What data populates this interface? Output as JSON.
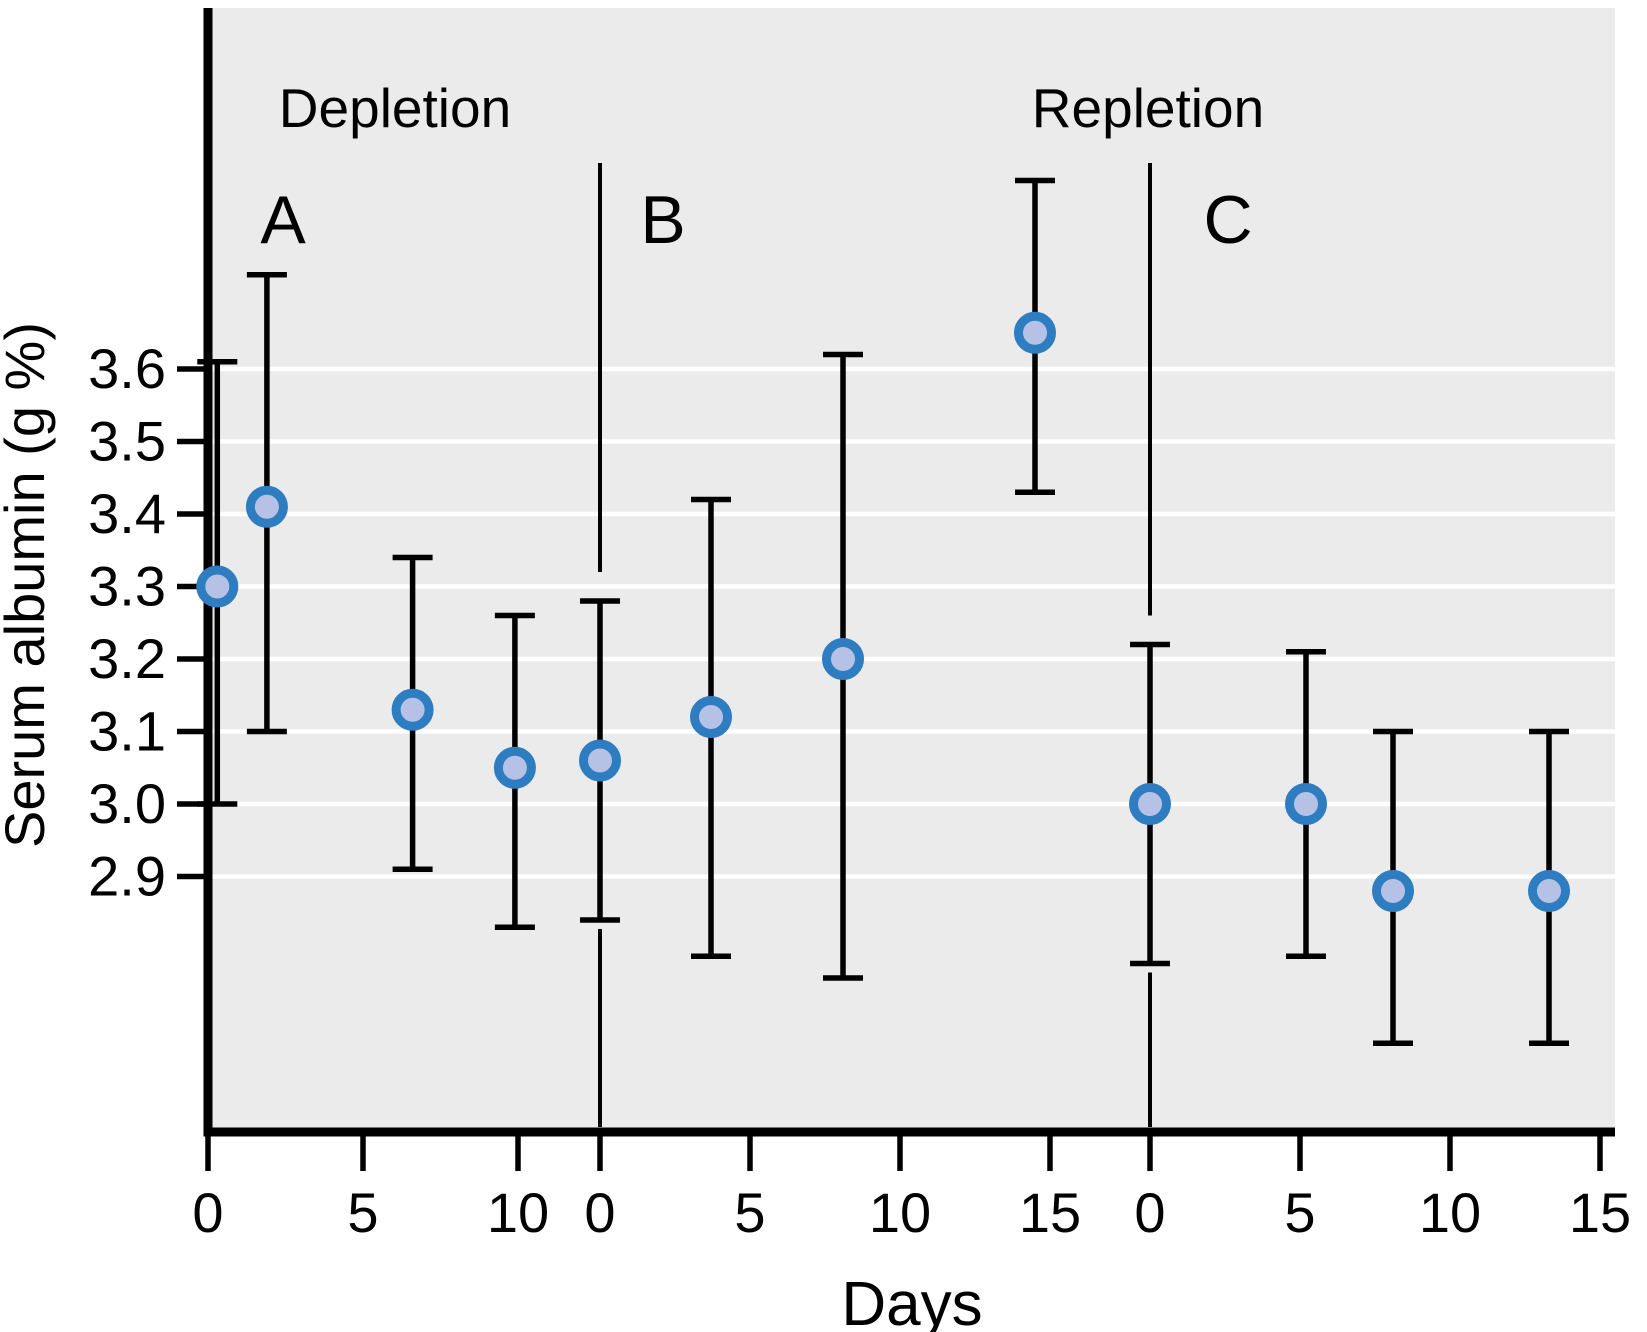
{
  "labels": {
    "phase_left": "Depletion",
    "phase_right": "Repletion",
    "panel_a": "A",
    "panel_b": "B",
    "panel_c": "C",
    "x_axis": "Days",
    "y_axis": "Serum albumin (g %)"
  },
  "colors": {
    "plot_background": "#ebebeb",
    "gridline": "#ffffff",
    "axis": "#000000",
    "error_bar": "#000000",
    "divider": "#000000",
    "marker_ring": "#2e7dc0",
    "marker_fill": "#b5c2e6"
  },
  "chart_data": {
    "type": "scatter",
    "title": "",
    "xlabel": "Days",
    "ylabel": "Serum albumin (g %)",
    "y_ticks": [
      3.6,
      3.5,
      3.4,
      3.3,
      3.2,
      3.1,
      3.0,
      2.9
    ],
    "y_tick_labels": [
      "3.6",
      "3.5",
      "3.4",
      "3.3",
      "3.2",
      "3.1",
      "3.0",
      "2.9"
    ],
    "ylim": [
      2.55,
      4.1
    ],
    "grid": "horizontal white gridlines at each labeled 0.1 g% from 2.9 to 3.6",
    "error_bars": "each point shows mean with capped vertical error bar (lo to hi)",
    "legend": "none",
    "phases": [
      {
        "label": "Depletion",
        "panels": [
          "A",
          "B"
        ]
      },
      {
        "label": "Repletion",
        "panels": [
          "C"
        ]
      }
    ],
    "panels": [
      {
        "label": "A",
        "x_ticks": [
          0,
          5,
          10
        ],
        "points": [
          {
            "day": 0.3,
            "mean": 3.3,
            "lo": 3.0,
            "hi": 3.61
          },
          {
            "day": 1.9,
            "mean": 3.41,
            "lo": 3.1,
            "hi": 3.73
          },
          {
            "day": 6.6,
            "mean": 3.13,
            "lo": 2.91,
            "hi": 3.34
          },
          {
            "day": 9.9,
            "mean": 3.05,
            "lo": 2.83,
            "hi": 3.26
          }
        ]
      },
      {
        "label": "B",
        "x_ticks": [
          0,
          5,
          10,
          15
        ],
        "divider_at_day": 0,
        "points": [
          {
            "day": 0.0,
            "mean": 3.06,
            "lo": 2.84,
            "hi": 3.28
          },
          {
            "day": 3.7,
            "mean": 3.12,
            "lo": 2.79,
            "hi": 3.42
          },
          {
            "day": 8.1,
            "mean": 3.2,
            "lo": 2.76,
            "hi": 3.62
          },
          {
            "day": 14.5,
            "mean": 3.65,
            "lo": 3.43,
            "hi": 3.86
          }
        ]
      },
      {
        "label": "C",
        "x_ticks": [
          0,
          5,
          10,
          15
        ],
        "divider_at_day": 0,
        "points": [
          {
            "day": 0.0,
            "mean": 3.0,
            "lo": 2.78,
            "hi": 3.22
          },
          {
            "day": 5.2,
            "mean": 3.0,
            "lo": 2.79,
            "hi": 3.21
          },
          {
            "day": 8.1,
            "mean": 2.88,
            "lo": 2.67,
            "hi": 3.1
          },
          {
            "day": 13.3,
            "mean": 2.88,
            "lo": 2.67,
            "hi": 3.1
          }
        ]
      }
    ]
  }
}
